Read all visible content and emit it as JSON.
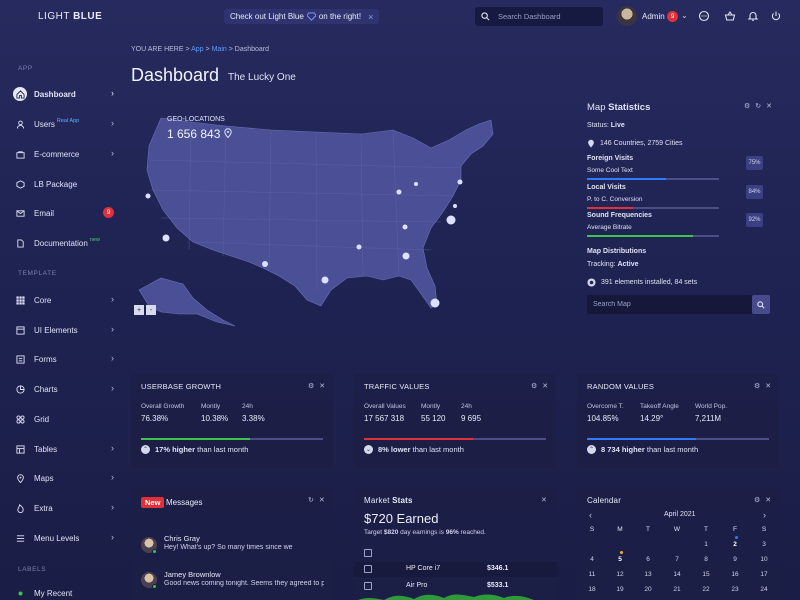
{
  "brand": {
    "light": "LIGHT",
    "bold": "BLUE"
  },
  "promo": {
    "text_before": "Check out Light Blue",
    "text_after": "on the right!",
    "close": "×"
  },
  "search": {
    "placeholder": "Search Dashboard"
  },
  "user": {
    "name": "Admin",
    "notifications": "9"
  },
  "sidebar": {
    "section_app": "APP",
    "section_template": "TEMPLATE",
    "section_labels": "LABELS",
    "items": [
      {
        "label": "Dashboard",
        "icon": "home-icon"
      },
      {
        "label": "Users",
        "tag": "Real App",
        "icon": "user-icon"
      },
      {
        "label": "E-commerce",
        "icon": "cart-icon"
      },
      {
        "label": "LB Package",
        "icon": "package-icon"
      },
      {
        "label": "Email",
        "badge": "9",
        "icon": "mail-icon"
      },
      {
        "label": "Documentation",
        "tag": "new",
        "icon": "document-icon"
      },
      {
        "label": "Core",
        "icon": "grid-icon"
      },
      {
        "label": "UI Elements",
        "icon": "window-icon"
      },
      {
        "label": "Forms",
        "icon": "form-icon"
      },
      {
        "label": "Charts",
        "icon": "pie-icon"
      },
      {
        "label": "Grid",
        "icon": "grid-four-icon"
      },
      {
        "label": "Tables",
        "icon": "table-icon"
      },
      {
        "label": "Maps",
        "icon": "pin-icon"
      },
      {
        "label": "Extra",
        "icon": "fire-icon"
      },
      {
        "label": "Menu Levels",
        "icon": "menu-icon"
      },
      {
        "label": "My Recent",
        "icon": "dot-icon"
      }
    ]
  },
  "breadcrumb": {
    "prefix": "YOU ARE HERE",
    "sep": ">",
    "app": "App",
    "main": "Main",
    "current": "Dashboard"
  },
  "page": {
    "title": "Dashboard",
    "subtitle": "The Lucky One"
  },
  "map": {
    "geo_label": "GEO-LOCATIONS",
    "geo_value": "1 656 843",
    "zoom_in": "+",
    "zoom_out": "-"
  },
  "map_stats": {
    "title_a": "Map",
    "title_b": "Statistics",
    "status_label": "Status:",
    "status_value": "Live",
    "countries": "146 Countries, 2759 Cities",
    "foreign_title": "Foreign Visits",
    "foreign_sub": "Some Cool Text",
    "foreign_pct": "75%",
    "foreign_fill": 0.6,
    "local_title": "Local Visits",
    "local_sub": "P. to C. Conversion",
    "local_pct": "84%",
    "local_fill": 0.35,
    "sound_title": "Sound Frequencies",
    "sound_sub": "Average Bitrate",
    "sound_pct": "92%",
    "sound_fill": 0.8,
    "dist_title": "Map Distributions",
    "tracking_label": "Tracking:",
    "tracking_value": "Active",
    "installed": "391 elements installed, 84 sets",
    "search_placeholder": "Search Map"
  },
  "userbase": {
    "title": "USERBASE GROWTH",
    "labels": [
      "Overall Growth",
      "Montly",
      "24h"
    ],
    "values": [
      "76.38%",
      "10.38%",
      "3.38%"
    ],
    "fill": 0.6,
    "foot_bold": "17% higher",
    "foot_rest": "than last month"
  },
  "traffic": {
    "title": "TRAFFIC VALUES",
    "labels": [
      "Overall Values",
      "Montly",
      "24h"
    ],
    "values": [
      "17 567 318",
      "55 120",
      "9 695"
    ],
    "fill": 0.6,
    "foot_bold": "8% lower",
    "foot_rest": "than last month"
  },
  "random": {
    "title": "RANDOM VALUES",
    "labels": [
      "Overcome T.",
      "Takeoff Angle",
      "World Pop."
    ],
    "values": [
      "104.85%",
      "14.29°",
      "7,211M"
    ],
    "fill": 0.6,
    "foot_bold": "8 734 higher",
    "foot_rest": "than last month"
  },
  "messages": {
    "new": "New",
    "title": "Messages",
    "items": [
      {
        "name": "Chris Gray",
        "text": "Hey! What's up? So many times since we"
      },
      {
        "name": "Jamey Brownlow",
        "text": "Good news coming tonight. Seems they agreed to pr..."
      }
    ]
  },
  "market": {
    "title_a": "Market",
    "title_b": "Stats",
    "earned": "$720 Earned",
    "target_pre": "Target",
    "target_amount": "$820",
    "target_mid": "day earnings is",
    "target_pct": "96%",
    "target_post": "reached.",
    "rows": [
      {
        "name": "HP Core i7",
        "price": "$346.1"
      },
      {
        "name": "Air Pro",
        "price": "$533.1"
      }
    ]
  },
  "calendar": {
    "title": "Calendar",
    "month": "April 2021",
    "prev": "‹",
    "next": "›",
    "days": [
      "S",
      "M",
      "T",
      "W",
      "T",
      "F",
      "S"
    ],
    "weeks": [
      [
        "",
        "",
        "",
        "",
        "1",
        "2",
        "3"
      ],
      [
        "4",
        "5",
        "6",
        "7",
        "8",
        "9",
        "10"
      ],
      [
        "11",
        "12",
        "13",
        "14",
        "15",
        "16",
        "17"
      ],
      [
        "18",
        "19",
        "20",
        "21",
        "22",
        "23",
        "24"
      ]
    ]
  },
  "colors": {
    "accent_blue": "#2f7bff",
    "accent_green": "#3fc24a",
    "accent_red": "#e0303a",
    "panel": "#1c1f46"
  }
}
